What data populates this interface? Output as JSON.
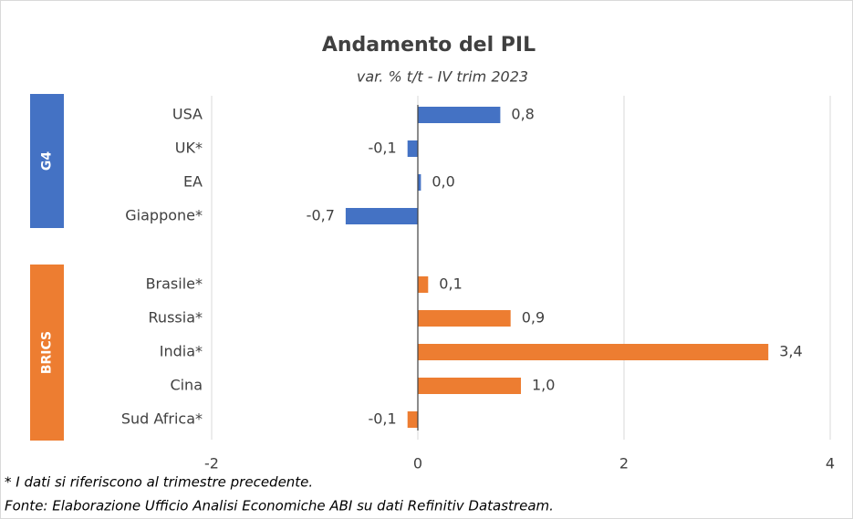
{
  "chart_data": {
    "type": "bar",
    "orientation": "horizontal",
    "title": "Andamento del PIL",
    "subtitle": "var. % t/t - IV trim 2023",
    "groups": [
      {
        "name": "G4",
        "color": "#4472c4",
        "categories": [
          "USA",
          "UK*",
          "EA",
          "Giappone*"
        ],
        "values": [
          0.8,
          -0.1,
          0.03,
          -0.7
        ],
        "value_labels": [
          "0,8",
          "-0,1",
          "0,0",
          "-0,7"
        ]
      },
      {
        "name": "BRICS",
        "color": "#ed7d31",
        "categories": [
          "Brasile*",
          "Russia*",
          "India*",
          "Cina",
          "Sud Africa*"
        ],
        "values": [
          0.1,
          0.9,
          3.4,
          1.0,
          -0.1
        ],
        "value_labels": [
          "0,1",
          "0,9",
          "3,4",
          "1,0",
          "-0,1"
        ]
      }
    ],
    "xlim": [
      -2,
      4
    ],
    "xticks": [
      -2,
      0,
      2,
      4
    ],
    "grid": true,
    "notes": [
      "* I dati si riferiscono al trimestre precedente.",
      "Fonte: Elaborazione Ufficio Analisi Economiche ABI su dati Refinitiv Datastream."
    ]
  }
}
